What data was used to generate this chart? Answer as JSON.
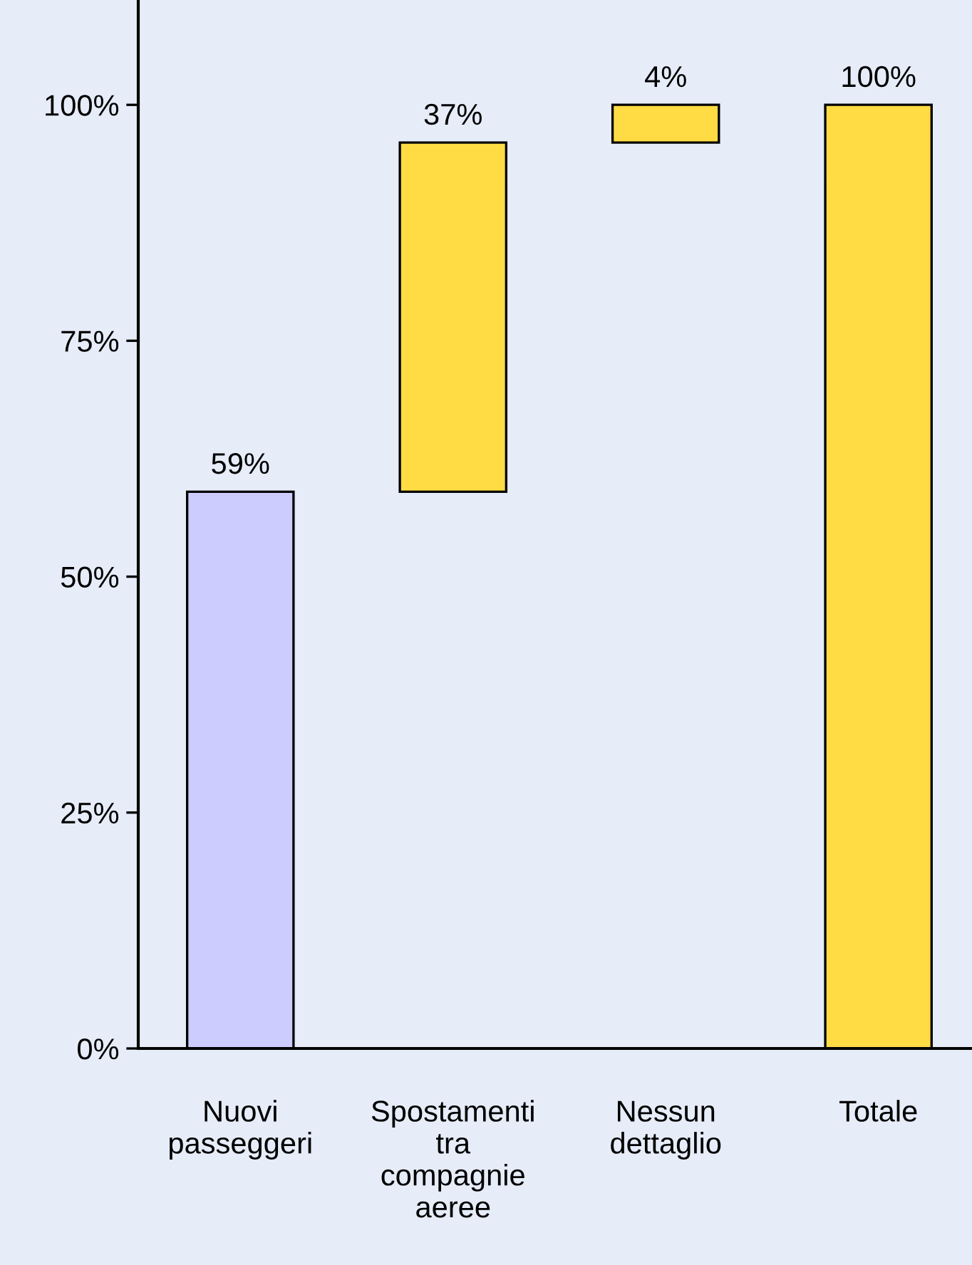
{
  "chart_data": {
    "type": "bar",
    "categories": [
      "Nuovi\npasseggeri",
      "Spostamenti\ntra\ncompagnie\naeree",
      "Nessun\ndettaglio",
      "Totale"
    ],
    "values": [
      59,
      37,
      4,
      100
    ],
    "base": [
      0,
      59,
      96,
      0
    ],
    "colors": [
      "#ccccff",
      "#ffdb44",
      "#ffdb44",
      "#ffdb44"
    ],
    "value_labels": [
      "59%",
      "37%",
      "4%",
      "100%"
    ],
    "ylim": [
      0,
      111
    ],
    "yticks": [
      {
        "value": 0,
        "label": "0%"
      },
      {
        "value": 25,
        "label": "25%"
      },
      {
        "value": 50,
        "label": "50%"
      },
      {
        "value": 75,
        "label": "75%"
      },
      {
        "value": 100,
        "label": "100%"
      }
    ],
    "grid": false,
    "legend": false
  }
}
